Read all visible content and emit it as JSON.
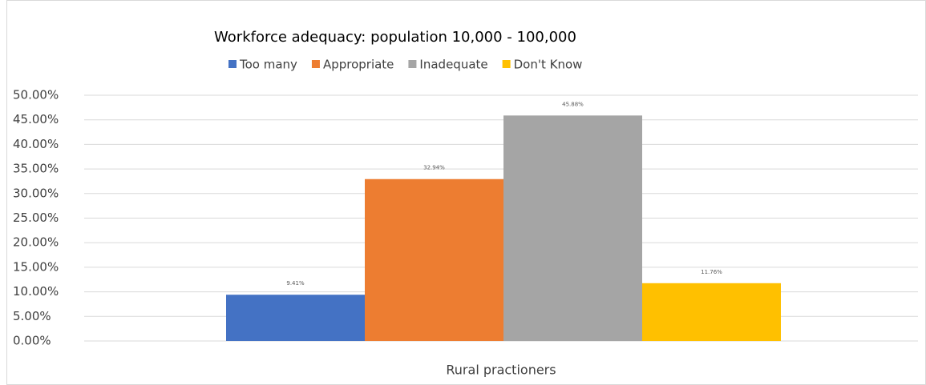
{
  "chart_data": {
    "type": "bar",
    "title": "Workforce adequacy: population 10,000 - 100,000",
    "categories": [
      "Rural practioners"
    ],
    "series": [
      {
        "name": "Too many",
        "color": "#4472c4",
        "values": [
          9.41
        ],
        "value_labels": [
          "9.41%"
        ]
      },
      {
        "name": "Appropriate",
        "color": "#ed7d31",
        "values": [
          32.94
        ],
        "value_labels": [
          "32.94%"
        ]
      },
      {
        "name": "Inadequate",
        "color": "#a5a5a5",
        "values": [
          45.88
        ],
        "value_labels": [
          "45.88%"
        ]
      },
      {
        "name": "Don't Know",
        "color": "#ffc000",
        "values": [
          11.76
        ],
        "value_labels": [
          "11.76%"
        ]
      }
    ],
    "ylim": [
      0,
      50
    ],
    "yticks": [
      {
        "value": 0,
        "label": "0.00%"
      },
      {
        "value": 5,
        "label": "5.00%"
      },
      {
        "value": 10,
        "label": "10.00%"
      },
      {
        "value": 15,
        "label": "15.00%"
      },
      {
        "value": 20,
        "label": "20.00%"
      },
      {
        "value": 25,
        "label": "25.00%"
      },
      {
        "value": 30,
        "label": "30.00%"
      },
      {
        "value": 35,
        "label": "35.00%"
      },
      {
        "value": 40,
        "label": "40.00%"
      },
      {
        "value": 45,
        "label": "45.00%"
      },
      {
        "value": 50,
        "label": "50.00%"
      }
    ],
    "grid": true,
    "legend": "top"
  }
}
